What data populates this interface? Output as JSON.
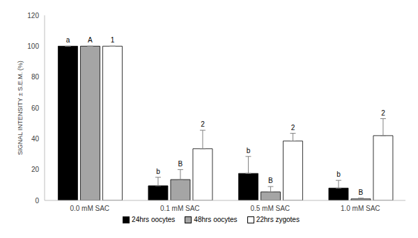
{
  "chart_data": {
    "type": "bar",
    "categories": [
      "0.0 mM SAC",
      "0.1 mM SAC",
      "0.5 mM SAC",
      "1.0 mM SAC"
    ],
    "y_label": "SIGNAL INTENSITY ± S.E.M. (%)",
    "ylim": [
      0,
      120
    ],
    "yticks": [
      0,
      20,
      40,
      60,
      80,
      100,
      120
    ],
    "grid": false,
    "legend": "bottom",
    "series": [
      {
        "name": "24hrs oocytes",
        "color": "#000000",
        "values": [
          100,
          9.5,
          17.5,
          8
        ],
        "errors": [
          0,
          5.5,
          11,
          5
        ],
        "annotations": [
          "a",
          "b",
          "b",
          "b"
        ]
      },
      {
        "name": "48hrs oocytes",
        "color": "#a5a5a5",
        "values": [
          100,
          13.5,
          5.5,
          1
        ],
        "errors": [
          0,
          6.5,
          3.5,
          0.5
        ],
        "annotations": [
          "A",
          "B",
          "B",
          "B"
        ]
      },
      {
        "name": "22hrs zygotes",
        "color": "#ffffff",
        "values": [
          100,
          33.5,
          38.5,
          42
        ],
        "errors": [
          0,
          12,
          5,
          11
        ],
        "annotations": [
          "1",
          "2",
          "2",
          "2"
        ]
      }
    ]
  }
}
